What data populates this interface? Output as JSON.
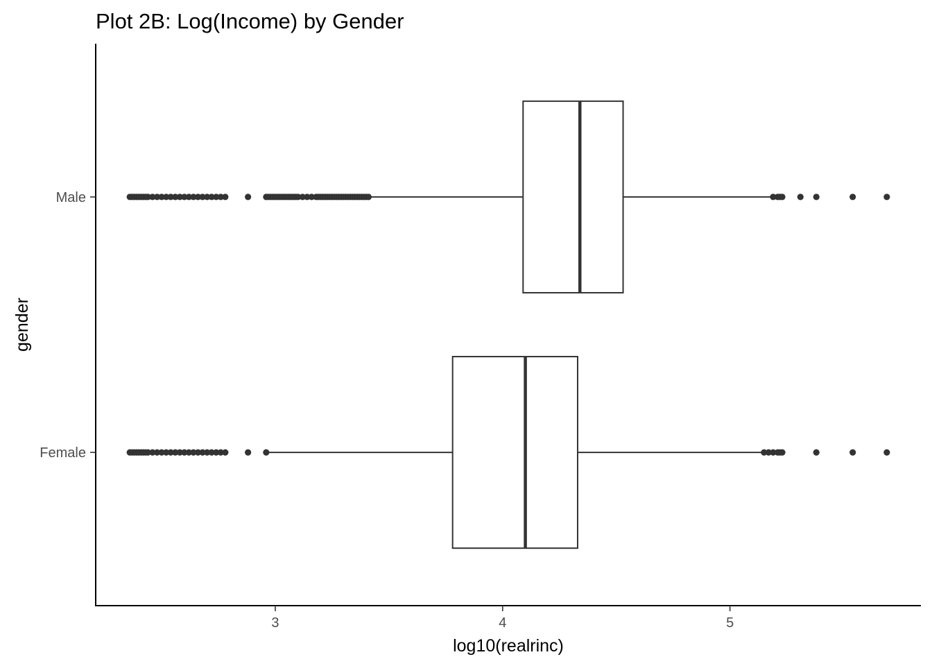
{
  "chart_data": {
    "type": "boxplot",
    "orientation": "horizontal",
    "title": "Plot 2B: Log(Income) by Gender",
    "xlabel": "log10(realrinc)",
    "ylabel": "gender",
    "xlim": [
      2.21,
      5.84
    ],
    "x_ticks": [
      3,
      4,
      5
    ],
    "x_tick_labels": [
      "3",
      "4",
      "5"
    ],
    "categories": [
      "Male",
      "Female"
    ],
    "grid": false,
    "legend": "none",
    "colors": {
      "box_outline": "#333333",
      "box_fill": "#ffffff",
      "axis": "#000000",
      "tick_label": "#4d4d4d"
    },
    "boxes": [
      {
        "category": "Male",
        "q1": 4.09,
        "median": 4.34,
        "q3": 4.53,
        "whisker_low": 3.42,
        "whisker_high": 5.19,
        "outliers": [
          2.36,
          2.37,
          2.38,
          2.39,
          2.4,
          2.41,
          2.42,
          2.43,
          2.44,
          2.46,
          2.48,
          2.5,
          2.52,
          2.54,
          2.56,
          2.58,
          2.6,
          2.62,
          2.64,
          2.66,
          2.68,
          2.7,
          2.72,
          2.74,
          2.76,
          2.78,
          2.88,
          2.96,
          2.97,
          2.98,
          2.99,
          3.0,
          3.01,
          3.02,
          3.03,
          3.04,
          3.05,
          3.06,
          3.07,
          3.08,
          3.09,
          3.1,
          3.12,
          3.14,
          3.16,
          3.18,
          3.19,
          3.2,
          3.21,
          3.22,
          3.23,
          3.24,
          3.25,
          3.26,
          3.27,
          3.28,
          3.29,
          3.3,
          3.31,
          3.32,
          3.33,
          3.34,
          3.35,
          3.36,
          3.37,
          3.38,
          3.39,
          3.4,
          3.41,
          5.19,
          5.21,
          5.22,
          5.23,
          5.31,
          5.38,
          5.54,
          5.69
        ]
      },
      {
        "category": "Female",
        "q1": 3.78,
        "median": 4.1,
        "q3": 4.33,
        "whisker_low": 2.96,
        "whisker_high": 5.15,
        "outliers": [
          2.36,
          2.37,
          2.38,
          2.39,
          2.4,
          2.41,
          2.42,
          2.43,
          2.44,
          2.46,
          2.48,
          2.5,
          2.52,
          2.54,
          2.56,
          2.58,
          2.6,
          2.62,
          2.64,
          2.66,
          2.68,
          2.7,
          2.72,
          2.74,
          2.76,
          2.78,
          2.88,
          2.96,
          5.15,
          5.17,
          5.19,
          5.21,
          5.22,
          5.23,
          5.38,
          5.54,
          5.69
        ]
      }
    ]
  }
}
